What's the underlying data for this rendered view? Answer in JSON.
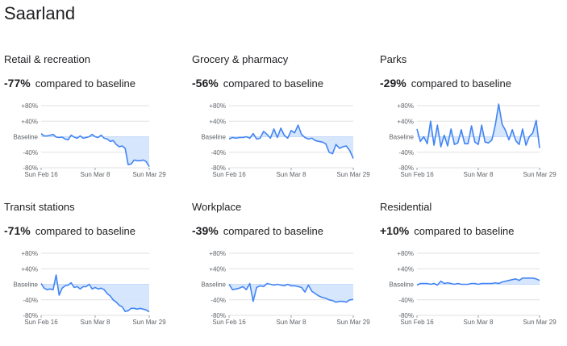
{
  "region": "Saarland",
  "chart_data": [
    {
      "type": "line",
      "title": "Retail & recreation",
      "change": "-77%",
      "change_suffix": "compared to baseline",
      "xticks": [
        "Sun Feb 16",
        "Sun Mar 8",
        "Sun Mar 29"
      ],
      "yticks": [
        "+80%",
        "+40%",
        "Baseline",
        "-40%",
        "-80%"
      ],
      "ylim": [
        -80,
        80
      ],
      "series": [
        {
          "values": [
            8,
            2,
            2,
            4,
            6,
            -1,
            -2,
            -1,
            -6,
            -8,
            4,
            -1,
            -4,
            2,
            -4,
            -2,
            0,
            6,
            0,
            -2,
            4,
            -4,
            -6,
            -12,
            -10,
            -20,
            -26,
            -24,
            -30,
            -72,
            -70,
            -60,
            -62,
            -62,
            -60,
            -64,
            -77
          ]
        }
      ],
      "color": "#4285f4"
    },
    {
      "type": "line",
      "title": "Grocery & pharmacy",
      "change": "-56%",
      "change_suffix": "compared to baseline",
      "xticks": [
        "Sun Feb 16",
        "Sun Mar 8",
        "Sun Mar 29"
      ],
      "yticks": [
        "+80%",
        "+40%",
        "Baseline",
        "-40%",
        "-80%"
      ],
      "ylim": [
        -80,
        80
      ],
      "series": [
        {
          "values": [
            -6,
            -2,
            -4,
            -2,
            -2,
            0,
            -4,
            8,
            -6,
            -4,
            14,
            6,
            -4,
            20,
            -2,
            22,
            4,
            -4,
            16,
            10,
            30,
            6,
            -2,
            -6,
            -4,
            -10,
            -12,
            -14,
            -18,
            -40,
            -44,
            -20,
            -30,
            -26,
            -24,
            -36,
            -56
          ]
        }
      ],
      "color": "#4285f4"
    },
    {
      "type": "line",
      "title": "Parks",
      "change": "-29%",
      "change_suffix": "compared to baseline",
      "xticks": [
        "Sun Feb 16",
        "Sun Mar 8",
        "Sun Mar 29"
      ],
      "yticks": [
        "+80%",
        "+40%",
        "Baseline",
        "-40%",
        "-80%"
      ],
      "ylim": [
        -80,
        80
      ],
      "series": [
        {
          "values": [
            20,
            -12,
            0,
            -18,
            40,
            -22,
            30,
            -26,
            4,
            -24,
            20,
            -20,
            -16,
            18,
            -18,
            -18,
            28,
            -14,
            -20,
            30,
            -14,
            -16,
            -8,
            30,
            84,
            32,
            16,
            -8,
            18,
            -10,
            -20,
            20,
            -22,
            0,
            10,
            42,
            -29
          ]
        }
      ],
      "color": "#4285f4"
    },
    {
      "type": "line",
      "title": "Transit stations",
      "change": "-71%",
      "change_suffix": "compared to baseline",
      "xticks": [
        "Sun Feb 16",
        "Sun Mar 8",
        "Sun Mar 29"
      ],
      "yticks": [
        "+80%",
        "+40%",
        "Baseline",
        "-40%",
        "-80%"
      ],
      "ylim": [
        -80,
        80
      ],
      "series": [
        {
          "values": [
            2,
            -10,
            -14,
            -12,
            -14,
            24,
            -28,
            -10,
            -4,
            -2,
            4,
            -8,
            -6,
            -12,
            -6,
            -6,
            0,
            -12,
            -8,
            -12,
            -10,
            -14,
            -24,
            -30,
            -40,
            -46,
            -54,
            -58,
            -70,
            -68,
            -62,
            -62,
            -64,
            -62,
            -64,
            -66,
            -71
          ]
        }
      ],
      "color": "#4285f4"
    },
    {
      "type": "line",
      "title": "Workplace",
      "change": "-39%",
      "change_suffix": "compared to baseline",
      "xticks": [
        "Sun Feb 16",
        "Sun Mar 8",
        "Sun Mar 29"
      ],
      "yticks": [
        "+80%",
        "+40%",
        "Baseline",
        "-40%",
        "-80%"
      ],
      "ylim": [
        -80,
        80
      ],
      "series": [
        {
          "values": [
            0,
            -14,
            -12,
            -10,
            -6,
            -14,
            2,
            -44,
            -8,
            -4,
            -6,
            2,
            0,
            -2,
            0,
            -2,
            -4,
            0,
            -4,
            -4,
            -6,
            -8,
            -20,
            -2,
            -18,
            -24,
            -30,
            -34,
            -36,
            -40,
            -42,
            -46,
            -44,
            -44,
            -46,
            -40,
            -39
          ]
        }
      ],
      "color": "#4285f4"
    },
    {
      "type": "line",
      "title": "Residential",
      "change": "+10%",
      "change_suffix": "compared to baseline",
      "xticks": [
        "Sun Feb 16",
        "Sun Mar 8",
        "Sun Mar 29"
      ],
      "yticks": [
        "+80%",
        "+40%",
        "Baseline",
        "-40%",
        "-80%"
      ],
      "ylim": [
        -80,
        80
      ],
      "series": [
        {
          "values": [
            -2,
            2,
            2,
            2,
            0,
            2,
            -2,
            8,
            2,
            4,
            2,
            0,
            2,
            0,
            0,
            0,
            2,
            2,
            0,
            2,
            2,
            2,
            2,
            4,
            2,
            6,
            8,
            10,
            12,
            14,
            10,
            16,
            16,
            16,
            16,
            14,
            10
          ]
        }
      ],
      "color": "#4285f4"
    }
  ]
}
